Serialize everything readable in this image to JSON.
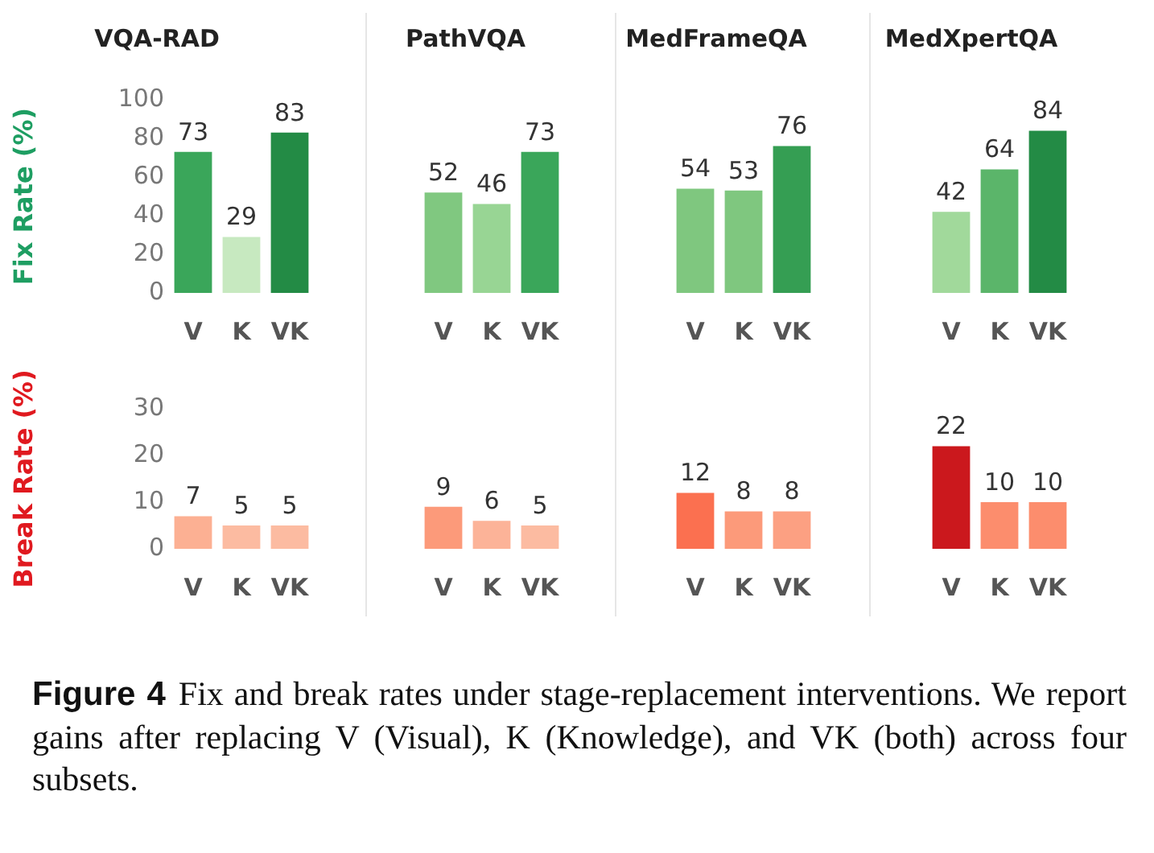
{
  "chart_data": [
    {
      "type": "bar",
      "title": "VQA-RAD",
      "ylabel": "Fix Rate (%)",
      "categories": [
        "V",
        "K",
        "VK"
      ],
      "values": [
        73,
        29,
        83
      ],
      "colors": [
        "#3aa65a",
        "#c7e9c0",
        "#238b45"
      ],
      "ylim": [
        0,
        100
      ],
      "yticks": [
        0,
        20,
        40,
        60,
        80,
        100
      ],
      "data_labels": true
    },
    {
      "type": "bar",
      "title": "PathVQA",
      "categories": [
        "V",
        "K",
        "VK"
      ],
      "values": [
        52,
        46,
        73
      ],
      "colors": [
        "#80c880",
        "#98d594",
        "#3aa65a"
      ],
      "ylim": [
        0,
        100
      ],
      "yticks": [
        0,
        20,
        40,
        60,
        80,
        100
      ],
      "data_labels": true,
      "tick_labels": "x"
    },
    {
      "type": "bar",
      "title": "MedFrameQA",
      "categories": [
        "V",
        "K",
        "VK"
      ],
      "values": [
        54,
        53,
        76
      ],
      "colors": [
        "#7fc77f",
        "#7fc77f",
        "#359e53"
      ],
      "ylim": [
        0,
        100
      ],
      "yticks": [
        0,
        20,
        40,
        60,
        80,
        100
      ],
      "data_labels": true,
      "tick_labels": "x"
    },
    {
      "type": "bar",
      "title": "MedXpertQA",
      "categories": [
        "V",
        "K",
        "VK"
      ],
      "values": [
        42,
        64,
        84
      ],
      "colors": [
        "#a1d99b",
        "#5bb56a",
        "#238b45"
      ],
      "ylim": [
        0,
        100
      ],
      "yticks": [
        0,
        20,
        40,
        60,
        80,
        100
      ],
      "data_labels": true,
      "tick_labels": "x"
    },
    {
      "type": "bar",
      "ylabel": "Break Rate (%)",
      "categories": [
        "V",
        "K",
        "VK"
      ],
      "values": [
        7,
        5,
        5
      ],
      "colors": [
        "#fcb093",
        "#fcbba1",
        "#fcbba1"
      ],
      "ylim": [
        0,
        30
      ],
      "yticks": [
        0,
        10,
        20,
        30
      ],
      "data_labels": true
    },
    {
      "type": "bar",
      "categories": [
        "V",
        "K",
        "VK"
      ],
      "values": [
        9,
        6,
        5
      ],
      "colors": [
        "#fc9a7a",
        "#fcb398",
        "#fcbba1"
      ],
      "ylim": [
        0,
        30
      ],
      "yticks": [
        0,
        10,
        20,
        30
      ],
      "data_labels": true,
      "tick_labels": "x"
    },
    {
      "type": "bar",
      "categories": [
        "V",
        "K",
        "VK"
      ],
      "values": [
        12,
        8,
        8
      ],
      "colors": [
        "#fb7050",
        "#fc9a7a",
        "#fca082"
      ],
      "ylim": [
        0,
        30
      ],
      "yticks": [
        0,
        10,
        20,
        30
      ],
      "data_labels": true,
      "tick_labels": "x"
    },
    {
      "type": "bar",
      "categories": [
        "V",
        "K",
        "VK"
      ],
      "values": [
        22,
        10,
        10
      ],
      "colors": [
        "#cb181d",
        "#fc8d6d",
        "#fc8d6d"
      ],
      "ylim": [
        0,
        30
      ],
      "yticks": [
        0,
        10,
        20,
        30
      ],
      "data_labels": true,
      "tick_labels": "x"
    },
    {
      "type": "other",
      "annotations": [
        "Figure 4",
        "Fix and break rates under stage-replacement interventions. We report gains after replacing V (Visual), K (Knowledge), and VK (both) across four subsets."
      ]
    }
  ]
}
